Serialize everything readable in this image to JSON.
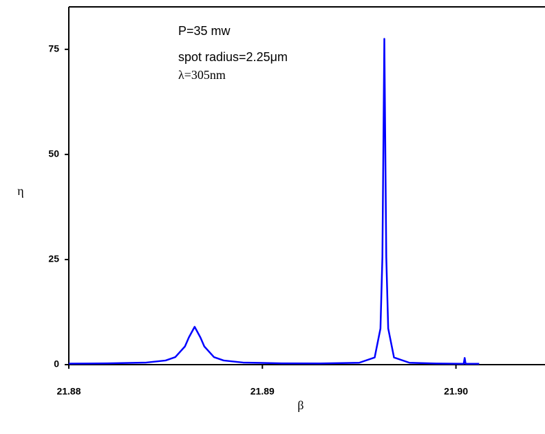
{
  "chart_data": {
    "type": "line",
    "xlabel": "β",
    "ylabel": "η",
    "annotations": [
      "P=35 mw",
      "spot radius=2.25μm",
      "λ=305nm"
    ],
    "color": "#0000ff",
    "x": [
      21.88,
      21.882,
      21.884,
      21.885,
      21.8855,
      21.886,
      21.8862,
      21.8865,
      21.8868,
      21.887,
      21.8875,
      21.888,
      21.889,
      21.891,
      21.893,
      21.895,
      21.8958,
      21.8961,
      21.8962,
      21.89625,
      21.8963,
      21.89635,
      21.8964,
      21.8965,
      21.8968,
      21.8976,
      21.899,
      21.9004,
      21.90045,
      21.9005,
      21.9012
    ],
    "values": [
      0.25,
      0.3,
      0.5,
      0.99,
      1.79,
      4.33,
      6.45,
      9.0,
      6.45,
      4.33,
      1.79,
      0.99,
      0.5,
      0.31,
      0.28,
      0.45,
      1.7,
      8.6,
      25.6,
      51.4,
      77.5,
      51.4,
      25.6,
      8.6,
      1.7,
      0.45,
      0.26,
      0.2,
      1.6,
      0.2,
      0.2
    ],
    "xlim": [
      21.88,
      21.9046
    ],
    "ylim": [
      0,
      85.1
    ],
    "xticks": [
      {
        "value": 21.88,
        "label": "21.88"
      },
      {
        "value": 21.89,
        "label": "21.89"
      },
      {
        "value": 21.9,
        "label": "21.90"
      }
    ],
    "yticks": [
      0,
      25,
      50,
      75
    ]
  }
}
